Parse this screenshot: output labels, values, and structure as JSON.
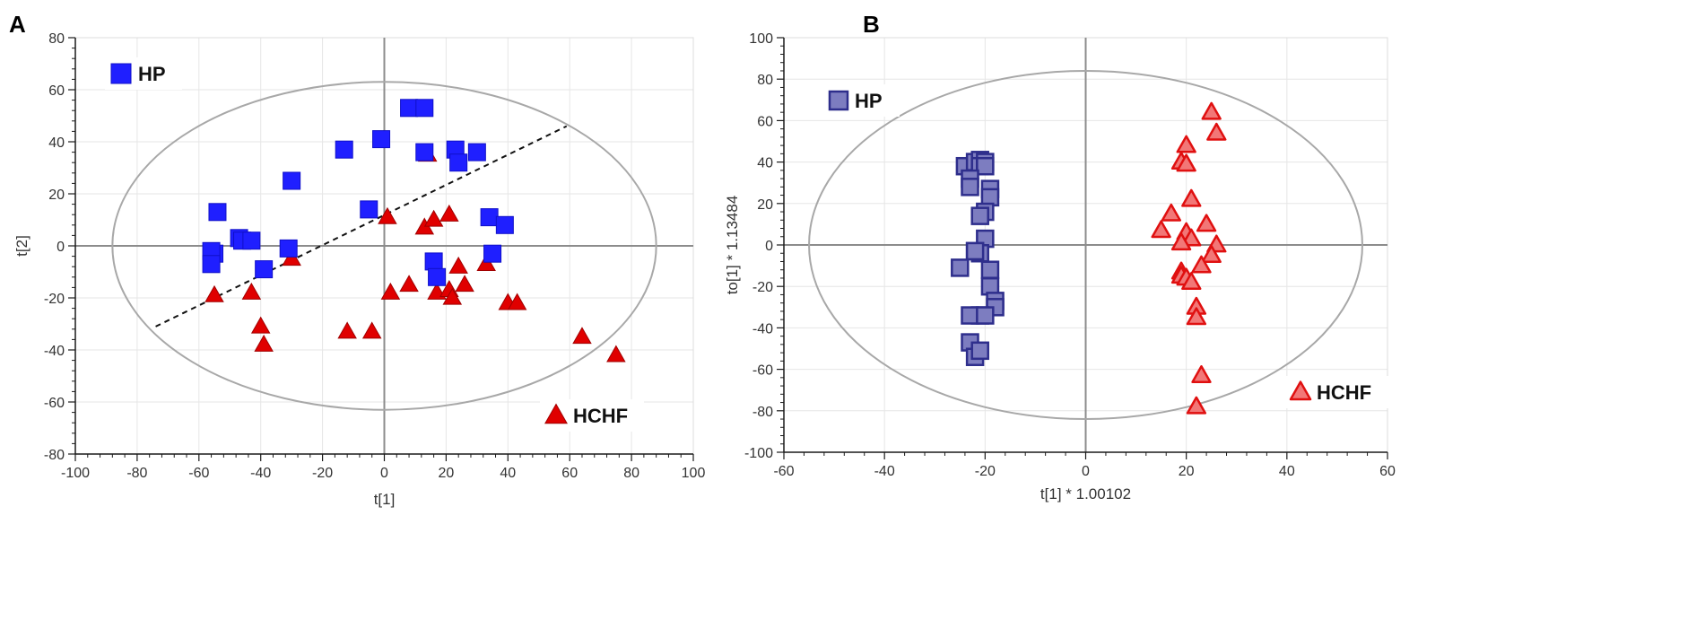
{
  "chart_data": [
    {
      "panel": "A",
      "type": "scatter",
      "title": "",
      "xlabel": "t[1]",
      "ylabel": "t[2]",
      "xlim": [
        -100,
        100
      ],
      "ylim": [
        -80,
        80
      ],
      "xticks": [
        -100,
        -80,
        -60,
        -40,
        -20,
        0,
        20,
        40,
        60,
        80,
        100
      ],
      "yticks": [
        -80,
        -60,
        -40,
        -20,
        0,
        20,
        40,
        60,
        80
      ],
      "grid": true,
      "ellipse": {
        "center": [
          0,
          0
        ],
        "rx": 88,
        "ry": 63
      },
      "dashed_line": {
        "x1": -74,
        "y1": -31,
        "x2": 59,
        "y2": 46
      },
      "legend": [
        {
          "label": "HP",
          "marker": "square",
          "color": "#1f1fff",
          "placement": "top-left"
        },
        {
          "label": "HCHF",
          "marker": "triangle",
          "color": "#e00000",
          "placement": "bottom-right"
        }
      ],
      "series": [
        {
          "name": "HP",
          "marker": "square",
          "color": "#1f1fff",
          "x": [
            -54,
            -55,
            -56,
            -56,
            -47,
            -46,
            -43,
            -39,
            -31,
            -30,
            -13,
            -5,
            -1,
            8,
            13,
            13,
            23,
            24,
            30,
            16,
            17,
            34,
            35,
            39
          ],
          "y": [
            13,
            -3,
            -2,
            -7,
            3,
            2,
            2,
            -9,
            -1,
            25,
            37,
            14,
            41,
            53,
            53,
            36,
            37,
            32,
            36,
            -6,
            -12,
            11,
            -3,
            8
          ]
        },
        {
          "name": "HCHF",
          "marker": "triangle",
          "color": "#e00000",
          "x": [
            -55,
            -43,
            -40,
            -39,
            -30,
            -12,
            -4,
            1,
            2,
            8,
            13,
            14,
            16,
            17,
            21,
            21,
            22,
            24,
            26,
            33,
            40,
            43,
            64,
            75
          ],
          "y": [
            -19,
            -18,
            -31,
            -38,
            -5,
            -33,
            -33,
            11,
            -18,
            -15,
            7,
            35,
            10,
            -18,
            12,
            -17,
            -20,
            -8,
            -15,
            -7,
            -22,
            -22,
            -35,
            -42
          ]
        }
      ]
    },
    {
      "panel": "B",
      "type": "scatter",
      "title": "",
      "xlabel": "t[1] * 1.00102",
      "ylabel": "to[1] * 1.13484",
      "xlim": [
        -60,
        60
      ],
      "ylim": [
        -100,
        100
      ],
      "xticks": [
        -60,
        -40,
        -20,
        0,
        20,
        40,
        60
      ],
      "yticks": [
        -100,
        -80,
        -60,
        -40,
        -20,
        0,
        20,
        40,
        60,
        80,
        100
      ],
      "grid": true,
      "ellipse": {
        "center": [
          0,
          0
        ],
        "rx": 55,
        "ry": 84
      },
      "legend": [
        {
          "label": "HP",
          "marker": "square",
          "color": "#5b5bb0",
          "placement": "top-left"
        },
        {
          "label": "HCHF",
          "marker": "triangle",
          "color": "#f05050",
          "placement": "bottom-right"
        }
      ],
      "series": [
        {
          "name": "HP",
          "marker": "square",
          "color": "#5b5bb0",
          "x": [
            -24,
            -22,
            -21,
            -21,
            -20,
            -20,
            -23,
            -23,
            -19,
            -19,
            -20,
            -21,
            -20,
            -22,
            -21,
            -22,
            -25,
            -19,
            -19,
            -18,
            -18,
            -21,
            -23,
            -20,
            -23,
            -22,
            -21
          ],
          "y": [
            38,
            40,
            41,
            38,
            40,
            38,
            32,
            28,
            27,
            23,
            16,
            14,
            3,
            -3,
            -4,
            -3,
            -11,
            -12,
            -20,
            -27,
            -30,
            -34,
            -34,
            -34,
            -47,
            -54,
            -51
          ],
          "colorHex": "#5b5bb0"
        },
        {
          "name": "HCHF",
          "marker": "triangle",
          "color": "#f05050",
          "x": [
            25,
            26,
            20,
            19,
            20,
            21,
            17,
            24,
            15,
            20,
            21,
            26,
            25,
            19,
            23,
            19,
            19,
            20,
            21,
            22,
            22,
            23,
            22
          ],
          "y": [
            64,
            54,
            48,
            40,
            39,
            22,
            15,
            10,
            7,
            6,
            3,
            0,
            -5,
            1,
            -10,
            -13,
            -15,
            -16,
            -18,
            -30,
            -35,
            -63,
            -78
          ]
        }
      ]
    }
  ]
}
